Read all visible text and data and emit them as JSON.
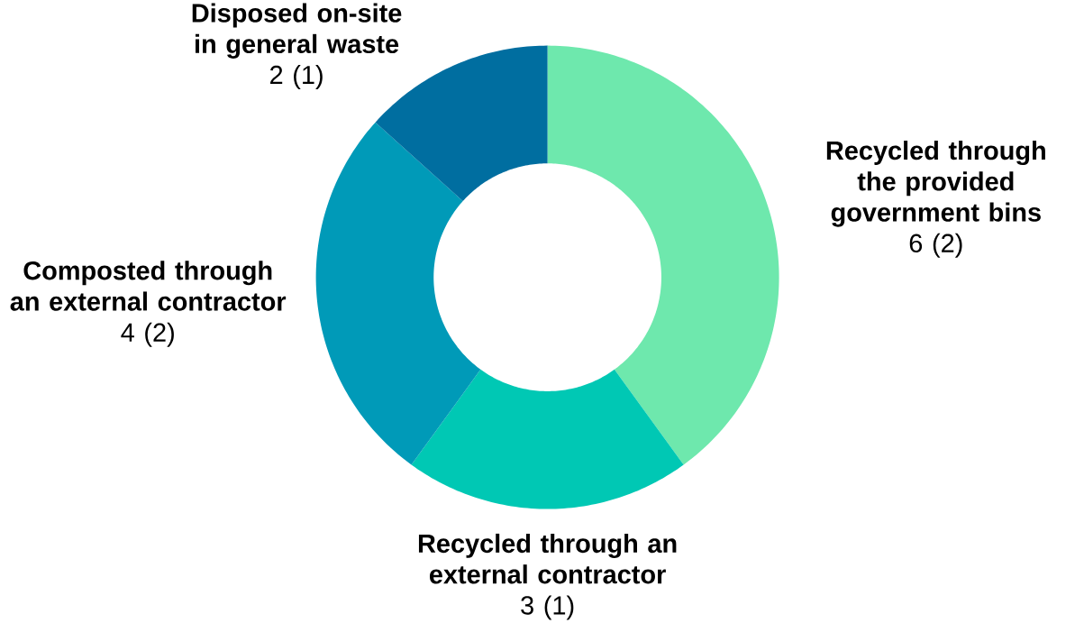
{
  "chart_data": {
    "type": "donut",
    "categories": [
      "Recycled through the provided government bins",
      "Recycled through an external contractor",
      "Composted through an external contractor",
      "Disposed on-site in general waste"
    ],
    "values": [
      6,
      3,
      4,
      2
    ],
    "colors": [
      "#6ee8ad",
      "#00c8b4",
      "#009ab8",
      "#006ea0"
    ],
    "value_labels": [
      "6 (2)",
      "3 (1)",
      "4 (2)",
      "2 (1)"
    ]
  }
}
